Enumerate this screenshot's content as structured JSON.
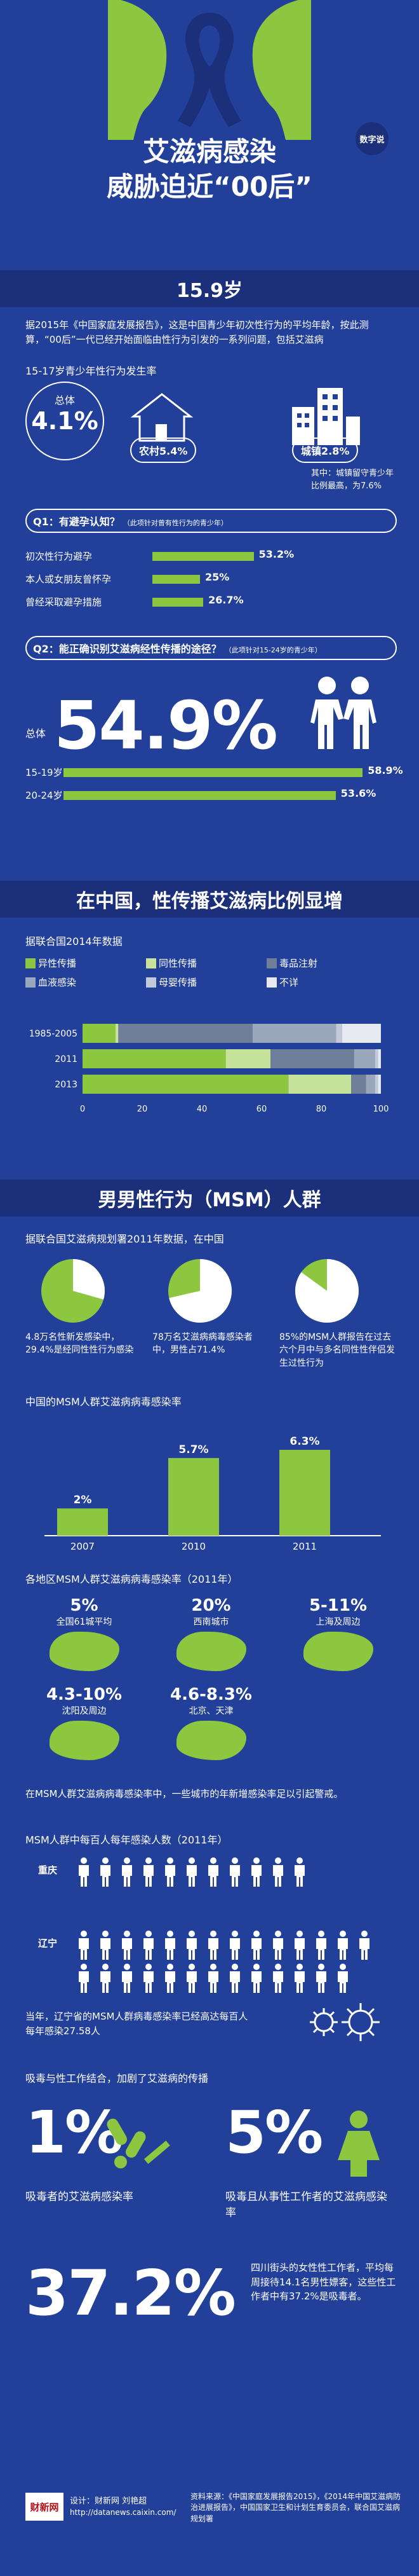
{
  "header": {
    "logo": "数字说",
    "title_line1": "艾滋病感染",
    "title_line2": "威胁迫近“00后”"
  },
  "section1": {
    "band_title": "15.9岁",
    "intro": "据2015年《中国家庭发展报告》，这是中国青少年初次性行为的平均年龄，按此测算，“00后”一代已经开始面临由性行为引发的一系列问题，包括艾滋病",
    "rate_title": "15-17岁青少年性行为发生率",
    "total_label": "总体",
    "total_value": "4.1%",
    "rural_label": "农村5.4%",
    "urban_label": "城镇2.8%",
    "urban_note": "其中：城镇留守青少年比例最高，为7.6%"
  },
  "q1": {
    "title": "Q1：有避孕认知？",
    "note": "（此项针对曾有性行为的青少年）",
    "items": [
      {
        "label": "初次性行为避孕",
        "value": "53.2%",
        "pct": 53.2
      },
      {
        "label": "本人或女朋友曾怀孕",
        "value": "25%",
        "pct": 25
      },
      {
        "label": "曾经采取避孕措施",
        "value": "26.7%",
        "pct": 26.7
      }
    ]
  },
  "q2": {
    "title": "Q2：能正确识别艾滋病经性传播的途径？",
    "note": "（此项针对15-24岁的青少年）",
    "total_label": "总体",
    "total_value": "54.9%",
    "items": [
      {
        "label": "15-19岁",
        "value": "58.9%",
        "pct": 58.9
      },
      {
        "label": "20-24岁",
        "value": "53.6%",
        "pct": 53.6
      }
    ]
  },
  "section2": {
    "band_title": "在中国，性传播艾滋病比例显增",
    "source": "据联合国2014年数据"
  },
  "chart_data": [
    {
      "type": "bar",
      "categories": [
        "1985-2005",
        "2011",
        "2013"
      ],
      "series": [
        {
          "name": "异性传播",
          "values": [
            11,
            48,
            69
          ]
        },
        {
          "name": "同性传播",
          "values": [
            1,
            15,
            21
          ]
        },
        {
          "name": "毒品注射",
          "values": [
            45,
            28,
            5
          ]
        },
        {
          "name": "血液感染",
          "values": [
            28,
            7,
            3
          ]
        },
        {
          "name": "母婴传播",
          "values": [
            2,
            1,
            1
          ]
        },
        {
          "name": "不详",
          "values": [
            13,
            1,
            1
          ]
        }
      ],
      "xlim": [
        0,
        100
      ],
      "xticks": [
        "0",
        "20",
        "40",
        "60",
        "80",
        "100"
      ],
      "colors": [
        "#8dc63f",
        "#c7e29a",
        "#6f7f9a",
        "#9aa7bd",
        "#c2cad7",
        "#e6e9ef"
      ]
    },
    {
      "type": "bar",
      "title": "中国的MSM人群艾滋病病毒感染率",
      "categories": [
        "2007",
        "2010",
        "2011"
      ],
      "values": [
        2,
        5.7,
        6.3
      ],
      "labels": [
        "2%",
        "5.7%",
        "6.3%"
      ],
      "ylim": [
        0,
        7
      ]
    }
  ],
  "section3": {
    "band_title": "男男性行为（MSM）人群",
    "intro": "据联合国艾滋病规划署2011年数据，在中国",
    "pies": [
      {
        "text": "4.8万名性新发感染中，29.4%是经同性性行为感染",
        "pct": 29.4
      },
      {
        "text": "78万名艾滋病病毒感染者中，男性占71.4%",
        "pct": 71.4
      },
      {
        "text": "85%的MSM人群报告在过去六个月中与多名同性性伴侣发生过性行为",
        "pct": 85
      }
    ]
  },
  "regions": {
    "title": "各地区MSM人群艾滋病病毒感染率（2011年）",
    "items": [
      {
        "value": "5%",
        "label": "全国61城平均"
      },
      {
        "value": "20%",
        "label": "西南城市"
      },
      {
        "value": "5-11%",
        "label": "上海及周边"
      },
      {
        "value": "4.3-10%",
        "label": "沈阳及周边"
      },
      {
        "value": "4.6-8.3%",
        "label": "北京、天津"
      }
    ],
    "note": "在MSM人群艾滋病病毒感染率中，一些城市的年新增感染率足以引起警戒。"
  },
  "new_infections": {
    "title": "MSM人群中每百人每年感染人数（2011年）",
    "rows": [
      {
        "label": "重庆",
        "count": 11
      },
      {
        "label": "辽宁",
        "count": 27.58
      }
    ],
    "note": "当年，辽宁省的MSM人群病毒感染率已经高达每百人每年感染27.58人"
  },
  "drugs": {
    "title": "吸毒与性工作结合，加剧了艾滋病的传播",
    "left_value": "1%",
    "left_label": "吸毒者的艾滋病感染率",
    "right_value": "5%",
    "right_label": "吸毒且从事性工作者的艾滋病感染率",
    "big_value": "37.2%",
    "big_note": "四川街头的女性性工作者，平均每周接待14.1名男性嫖客，这些性工作者中有37.2%是吸毒者。"
  },
  "footer": {
    "brand": "财新网",
    "credit": "设计：财新网 刘艳超",
    "url": "http://datanews.caixin.com/",
    "source": "资料来源：《中国家庭发展报告2015》，《2014年中国艾滋病防治进展报告》，中国国家卫生和计划生育委员会，联合国艾滋病规划署"
  }
}
